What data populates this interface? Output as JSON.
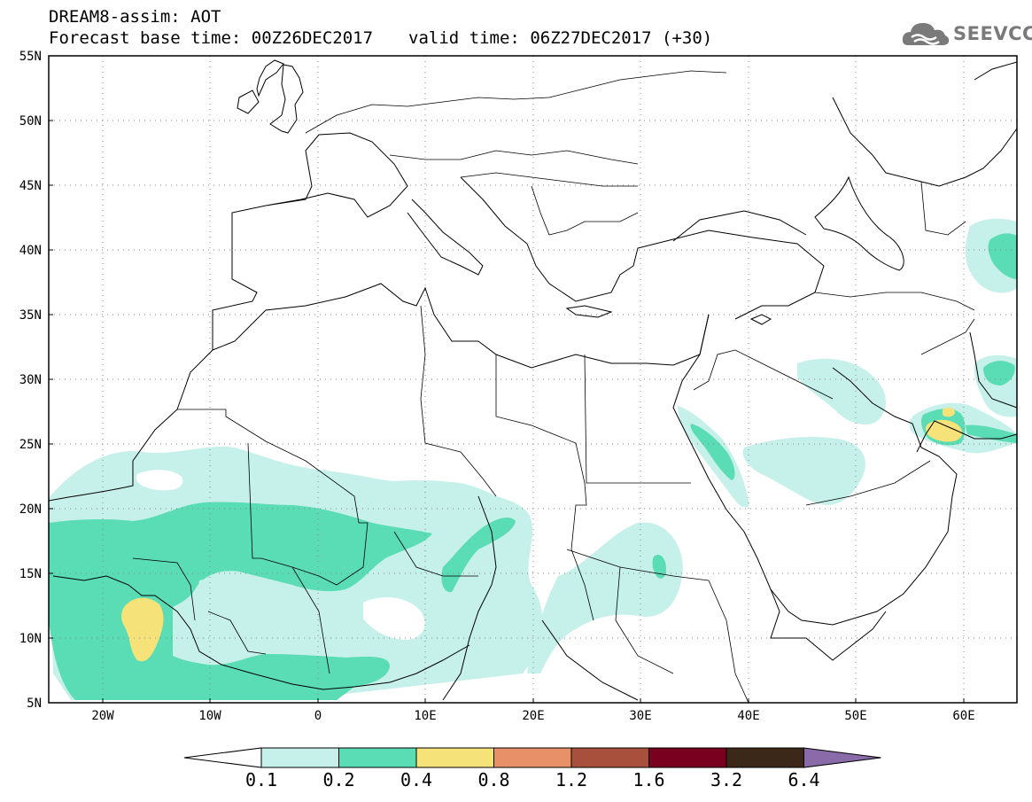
{
  "title": {
    "line1": "DREAM8-assim: AOT",
    "base_time": "Forecast base time: 00Z26DEC2017",
    "valid_time": "valid time: 06Z27DEC2017 (+30)"
  },
  "logo": {
    "text": "SEEVCCC",
    "icon": "cloud-icon"
  },
  "map": {
    "projection": "latitude-longitude",
    "lon_range": [
      -25,
      65
    ],
    "lat_range": [
      5,
      55
    ],
    "lat_labels": [
      "55N",
      "50N",
      "45N",
      "40N",
      "35N",
      "30N",
      "25N",
      "20N",
      "15N",
      "10N",
      "5N"
    ],
    "lon_labels": [
      "20W",
      "10W",
      "0",
      "10E",
      "20E",
      "30E",
      "40E",
      "50E",
      "60E"
    ]
  },
  "colorbar": {
    "labels": [
      "0.1",
      "0.2",
      "0.4",
      "0.8",
      "1.2",
      "1.6",
      "3.2",
      "6.4"
    ],
    "colors": [
      "#ffffff",
      "#c6f0ea",
      "#5adcb4",
      "#f5e278",
      "#e89068",
      "#a8503c",
      "#7a0020",
      "#3c2818",
      "#8a6aa8"
    ]
  }
}
